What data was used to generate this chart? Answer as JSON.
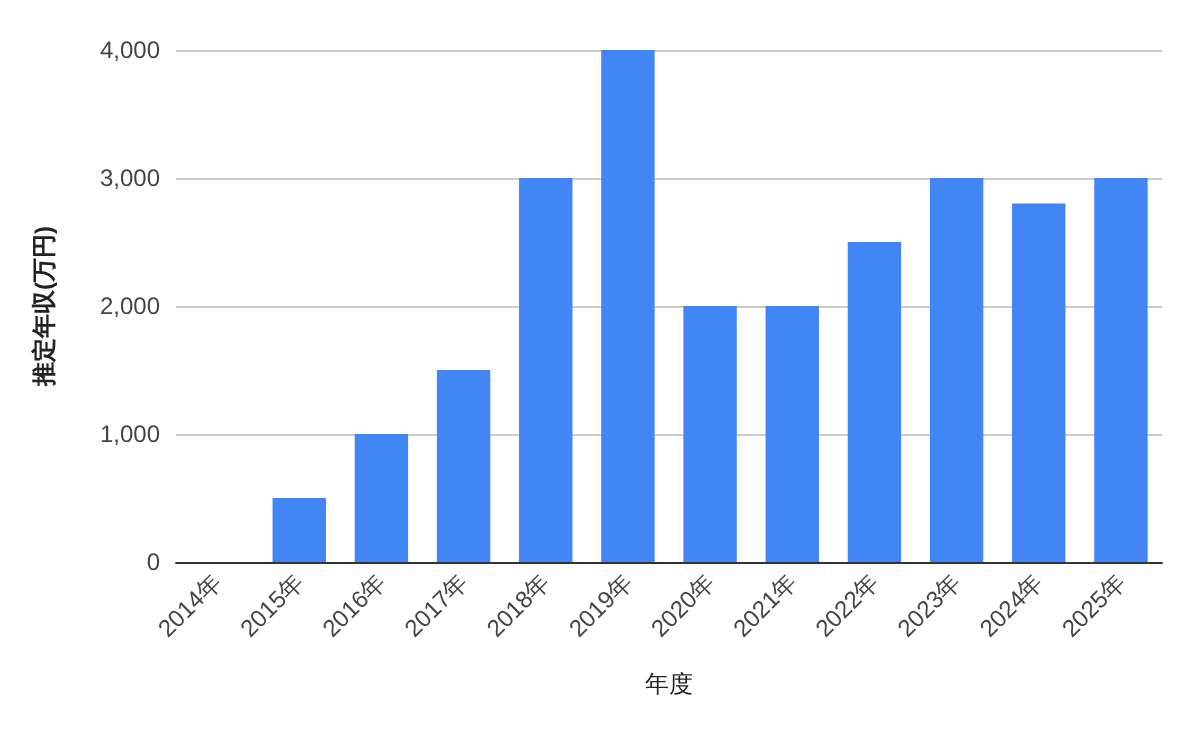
{
  "chart_data": {
    "type": "bar",
    "xlabel": "年度",
    "ylabel": "推定年収(万円)",
    "categories": [
      "2014年",
      "2015年",
      "2016年",
      "2017年",
      "2018年",
      "2019年",
      "2020年",
      "2021年",
      "2022年",
      "2023年",
      "2024年",
      "2025年"
    ],
    "values": [
      0,
      500,
      1000,
      1500,
      3000,
      4000,
      2000,
      2000,
      2500,
      3000,
      2800,
      3000
    ],
    "color": "#4285f4",
    "ylim": [
      0,
      4000
    ],
    "yticks": [
      {
        "value": 0,
        "label": "0"
      },
      {
        "value": 1000,
        "label": "1,000"
      },
      {
        "value": 2000,
        "label": "2,000"
      },
      {
        "value": 3000,
        "label": "3,000"
      },
      {
        "value": 4000,
        "label": "4,000"
      }
    ],
    "grid": "y"
  }
}
